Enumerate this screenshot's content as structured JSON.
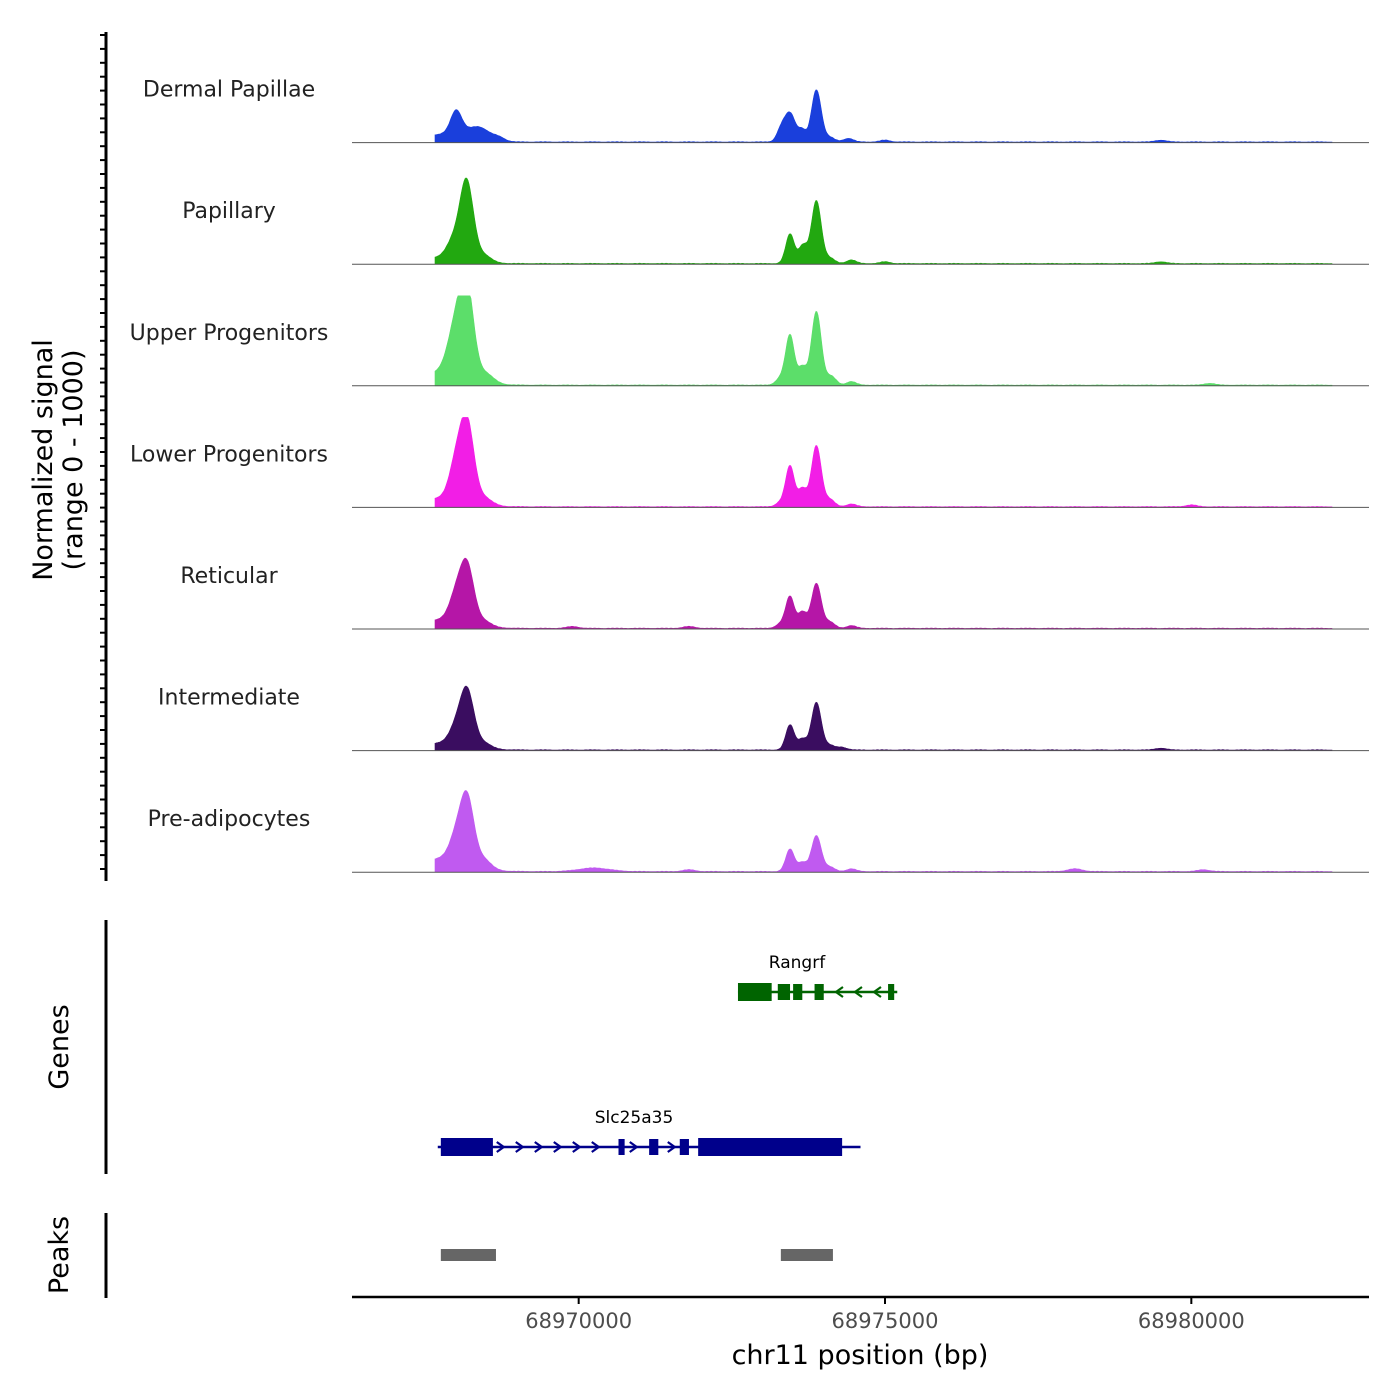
{
  "chart_data": {
    "type": "area",
    "title": "",
    "chromosome": "chr11",
    "xlabel": "chr11 position (bp)",
    "ylabel_line1": "Normalized signal",
    "ylabel_line2": "(range 0 - 1000)",
    "xlim": [
      68966300,
      68982900
    ],
    "x_ticks": [
      68970000,
      68975000,
      68980000
    ],
    "x_tick_labels": [
      "68970000",
      "68975000",
      "68980000"
    ],
    "ylim": [
      0,
      1000
    ],
    "series": [
      {
        "name": "Dermal Papillae",
        "color": "#1a3fdc",
        "peaks": [
          [
            68967750,
            8,
            400
          ],
          [
            68968000,
            25,
            90
          ],
          [
            68968150,
            5,
            200
          ],
          [
            68968400,
            12,
            160
          ],
          [
            68968700,
            4,
            100
          ],
          [
            68973300,
            12,
            70
          ],
          [
            68973450,
            32,
            90
          ],
          [
            68973650,
            12,
            60
          ],
          [
            68973880,
            58,
            80
          ],
          [
            68974100,
            5,
            80
          ],
          [
            68974400,
            4,
            80
          ],
          [
            68975000,
            2,
            80
          ],
          [
            68979500,
            2,
            90
          ]
        ]
      },
      {
        "name": "Papillary",
        "color": "#22a810",
        "peaks": [
          [
            68967750,
            7,
            400
          ],
          [
            68967950,
            18,
            110
          ],
          [
            68968170,
            88,
            110
          ],
          [
            68968450,
            8,
            120
          ],
          [
            68973450,
            33,
            70
          ],
          [
            68973660,
            20,
            70
          ],
          [
            68973880,
            70,
            80
          ],
          [
            68974100,
            6,
            80
          ],
          [
            68974450,
            4,
            80
          ],
          [
            68975000,
            2,
            80
          ],
          [
            68979500,
            2,
            90
          ]
        ]
      },
      {
        "name": "Upper Progenitors",
        "color": "#5cde6a",
        "peaks": [
          [
            68967800,
            15,
            400
          ],
          [
            68968000,
            55,
            130
          ],
          [
            68968180,
            90,
            110
          ],
          [
            68968480,
            10,
            130
          ],
          [
            68973300,
            8,
            80
          ],
          [
            68973450,
            55,
            70
          ],
          [
            68973650,
            20,
            70
          ],
          [
            68973880,
            82,
            80
          ],
          [
            68974120,
            10,
            80
          ],
          [
            68974450,
            4,
            80
          ],
          [
            68980300,
            2,
            90
          ]
        ]
      },
      {
        "name": "Lower Progenitors",
        "color": "#f21ee6",
        "peaks": [
          [
            68967800,
            10,
            400
          ],
          [
            68968000,
            40,
            110
          ],
          [
            68968180,
            85,
            110
          ],
          [
            68968450,
            8,
            130
          ],
          [
            68973300,
            5,
            80
          ],
          [
            68973450,
            45,
            70
          ],
          [
            68973650,
            20,
            70
          ],
          [
            68973880,
            68,
            80
          ],
          [
            68974100,
            8,
            80
          ],
          [
            68974450,
            3,
            80
          ],
          [
            68980000,
            2,
            90
          ]
        ]
      },
      {
        "name": "Reticular",
        "color": "#b516a7",
        "peaks": [
          [
            68967800,
            10,
            400
          ],
          [
            68968000,
            28,
            110
          ],
          [
            68968180,
            62,
            110
          ],
          [
            68968450,
            6,
            120
          ],
          [
            68969900,
            2,
            100
          ],
          [
            68971800,
            2,
            100
          ],
          [
            68973300,
            5,
            80
          ],
          [
            68973450,
            35,
            70
          ],
          [
            68973650,
            18,
            70
          ],
          [
            68973880,
            50,
            80
          ],
          [
            68974100,
            7,
            80
          ],
          [
            68974450,
            3,
            80
          ]
        ]
      },
      {
        "name": "Intermediate",
        "color": "#3a0d60",
        "peaks": [
          [
            68967800,
            8,
            400
          ],
          [
            68968000,
            18,
            110
          ],
          [
            68968180,
            60,
            110
          ],
          [
            68968450,
            6,
            120
          ],
          [
            68973450,
            28,
            70
          ],
          [
            68973650,
            12,
            70
          ],
          [
            68973880,
            53,
            80
          ],
          [
            68974100,
            5,
            80
          ],
          [
            68974300,
            3,
            80
          ],
          [
            68979500,
            2,
            90
          ]
        ]
      },
      {
        "name": "Pre-adipocytes",
        "color": "#c05af0",
        "peaks": [
          [
            68967800,
            15,
            400
          ],
          [
            68968000,
            25,
            110
          ],
          [
            68968180,
            72,
            110
          ],
          [
            68968450,
            10,
            120
          ],
          [
            68970250,
            4,
            250
          ],
          [
            68971800,
            2,
            100
          ],
          [
            68973450,
            25,
            70
          ],
          [
            68973650,
            10,
            70
          ],
          [
            68973880,
            40,
            80
          ],
          [
            68974100,
            5,
            80
          ],
          [
            68974450,
            3,
            80
          ],
          [
            68978100,
            3,
            120
          ],
          [
            68980200,
            2,
            100
          ]
        ]
      }
    ],
    "genes_track_label": "Genes",
    "genes": [
      {
        "name": "Slc25a35",
        "color": "#00008b",
        "strand": "+",
        "start": 68967700,
        "end": 68974600,
        "exons": [
          [
            68967750,
            68968600
          ],
          [
            68970650,
            68970750
          ],
          [
            68971150,
            68971300
          ],
          [
            68971650,
            68971800
          ],
          [
            68971950,
            68974300
          ]
        ],
        "thick_exon_index": 4
      },
      {
        "name": "Rangrf",
        "color": "#006400",
        "strand": "-",
        "start": 68972600,
        "end": 68975200,
        "exons": [
          [
            68972600,
            68973150
          ],
          [
            68973250,
            68973450
          ],
          [
            68973500,
            68973650
          ],
          [
            68973850,
            68974000
          ],
          [
            68975050,
            68975150
          ]
        ],
        "thick_exon_index": 0
      }
    ],
    "peaks_track_label": "Peaks",
    "peak_regions": [
      [
        68967750,
        68968650
      ],
      [
        68973300,
        68974150
      ]
    ],
    "peak_color": "#666666"
  }
}
